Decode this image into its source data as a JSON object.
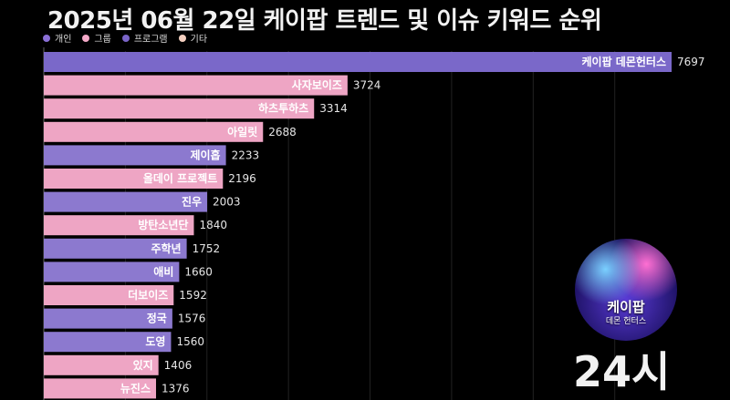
{
  "title": "2025년 06월 22일 케이팝 트렌드 및 이슈 키워드 순위",
  "legend": [
    {
      "label": "개인",
      "color": "#8a6fd6"
    },
    {
      "label": "그룹",
      "color": "#f4a9c8"
    },
    {
      "label": "프로그램",
      "color": "#7a64c8"
    },
    {
      "label": "기타",
      "color": "#f5d0c0"
    }
  ],
  "badge": {
    "title": "케이팝",
    "subtitle": "데몬 헌터스"
  },
  "time_label": "24시",
  "chart_data": {
    "type": "bar",
    "orientation": "horizontal",
    "title": "2025년 06월 22일 케이팝 트렌드 및 이슈 키워드 순위",
    "xlim": [
      0,
      8000
    ],
    "categories": [
      "케이팝 데몬헌터스",
      "사자보이즈",
      "하츠투하츠",
      "아일릿",
      "제이홉",
      "올데이 프로젝트",
      "진우",
      "방탄소년단",
      "주학년",
      "애비",
      "더보이즈",
      "정국",
      "도영",
      "있지",
      "뉴진스"
    ],
    "values": [
      7697,
      3724,
      3314,
      2688,
      2233,
      2196,
      2003,
      1840,
      1752,
      1660,
      1592,
      1576,
      1560,
      1406,
      1376
    ],
    "groups": [
      "프로그램",
      "그룹",
      "그룹",
      "그룹",
      "개인",
      "그룹",
      "개인",
      "그룹",
      "개인",
      "개인",
      "그룹",
      "개인",
      "개인",
      "그룹",
      "그룹"
    ],
    "colors": {
      "개인": "#8c79cf",
      "그룹": "#eea5c4",
      "프로그램": "#7a68c9",
      "기타": "#f5d0c0"
    }
  }
}
